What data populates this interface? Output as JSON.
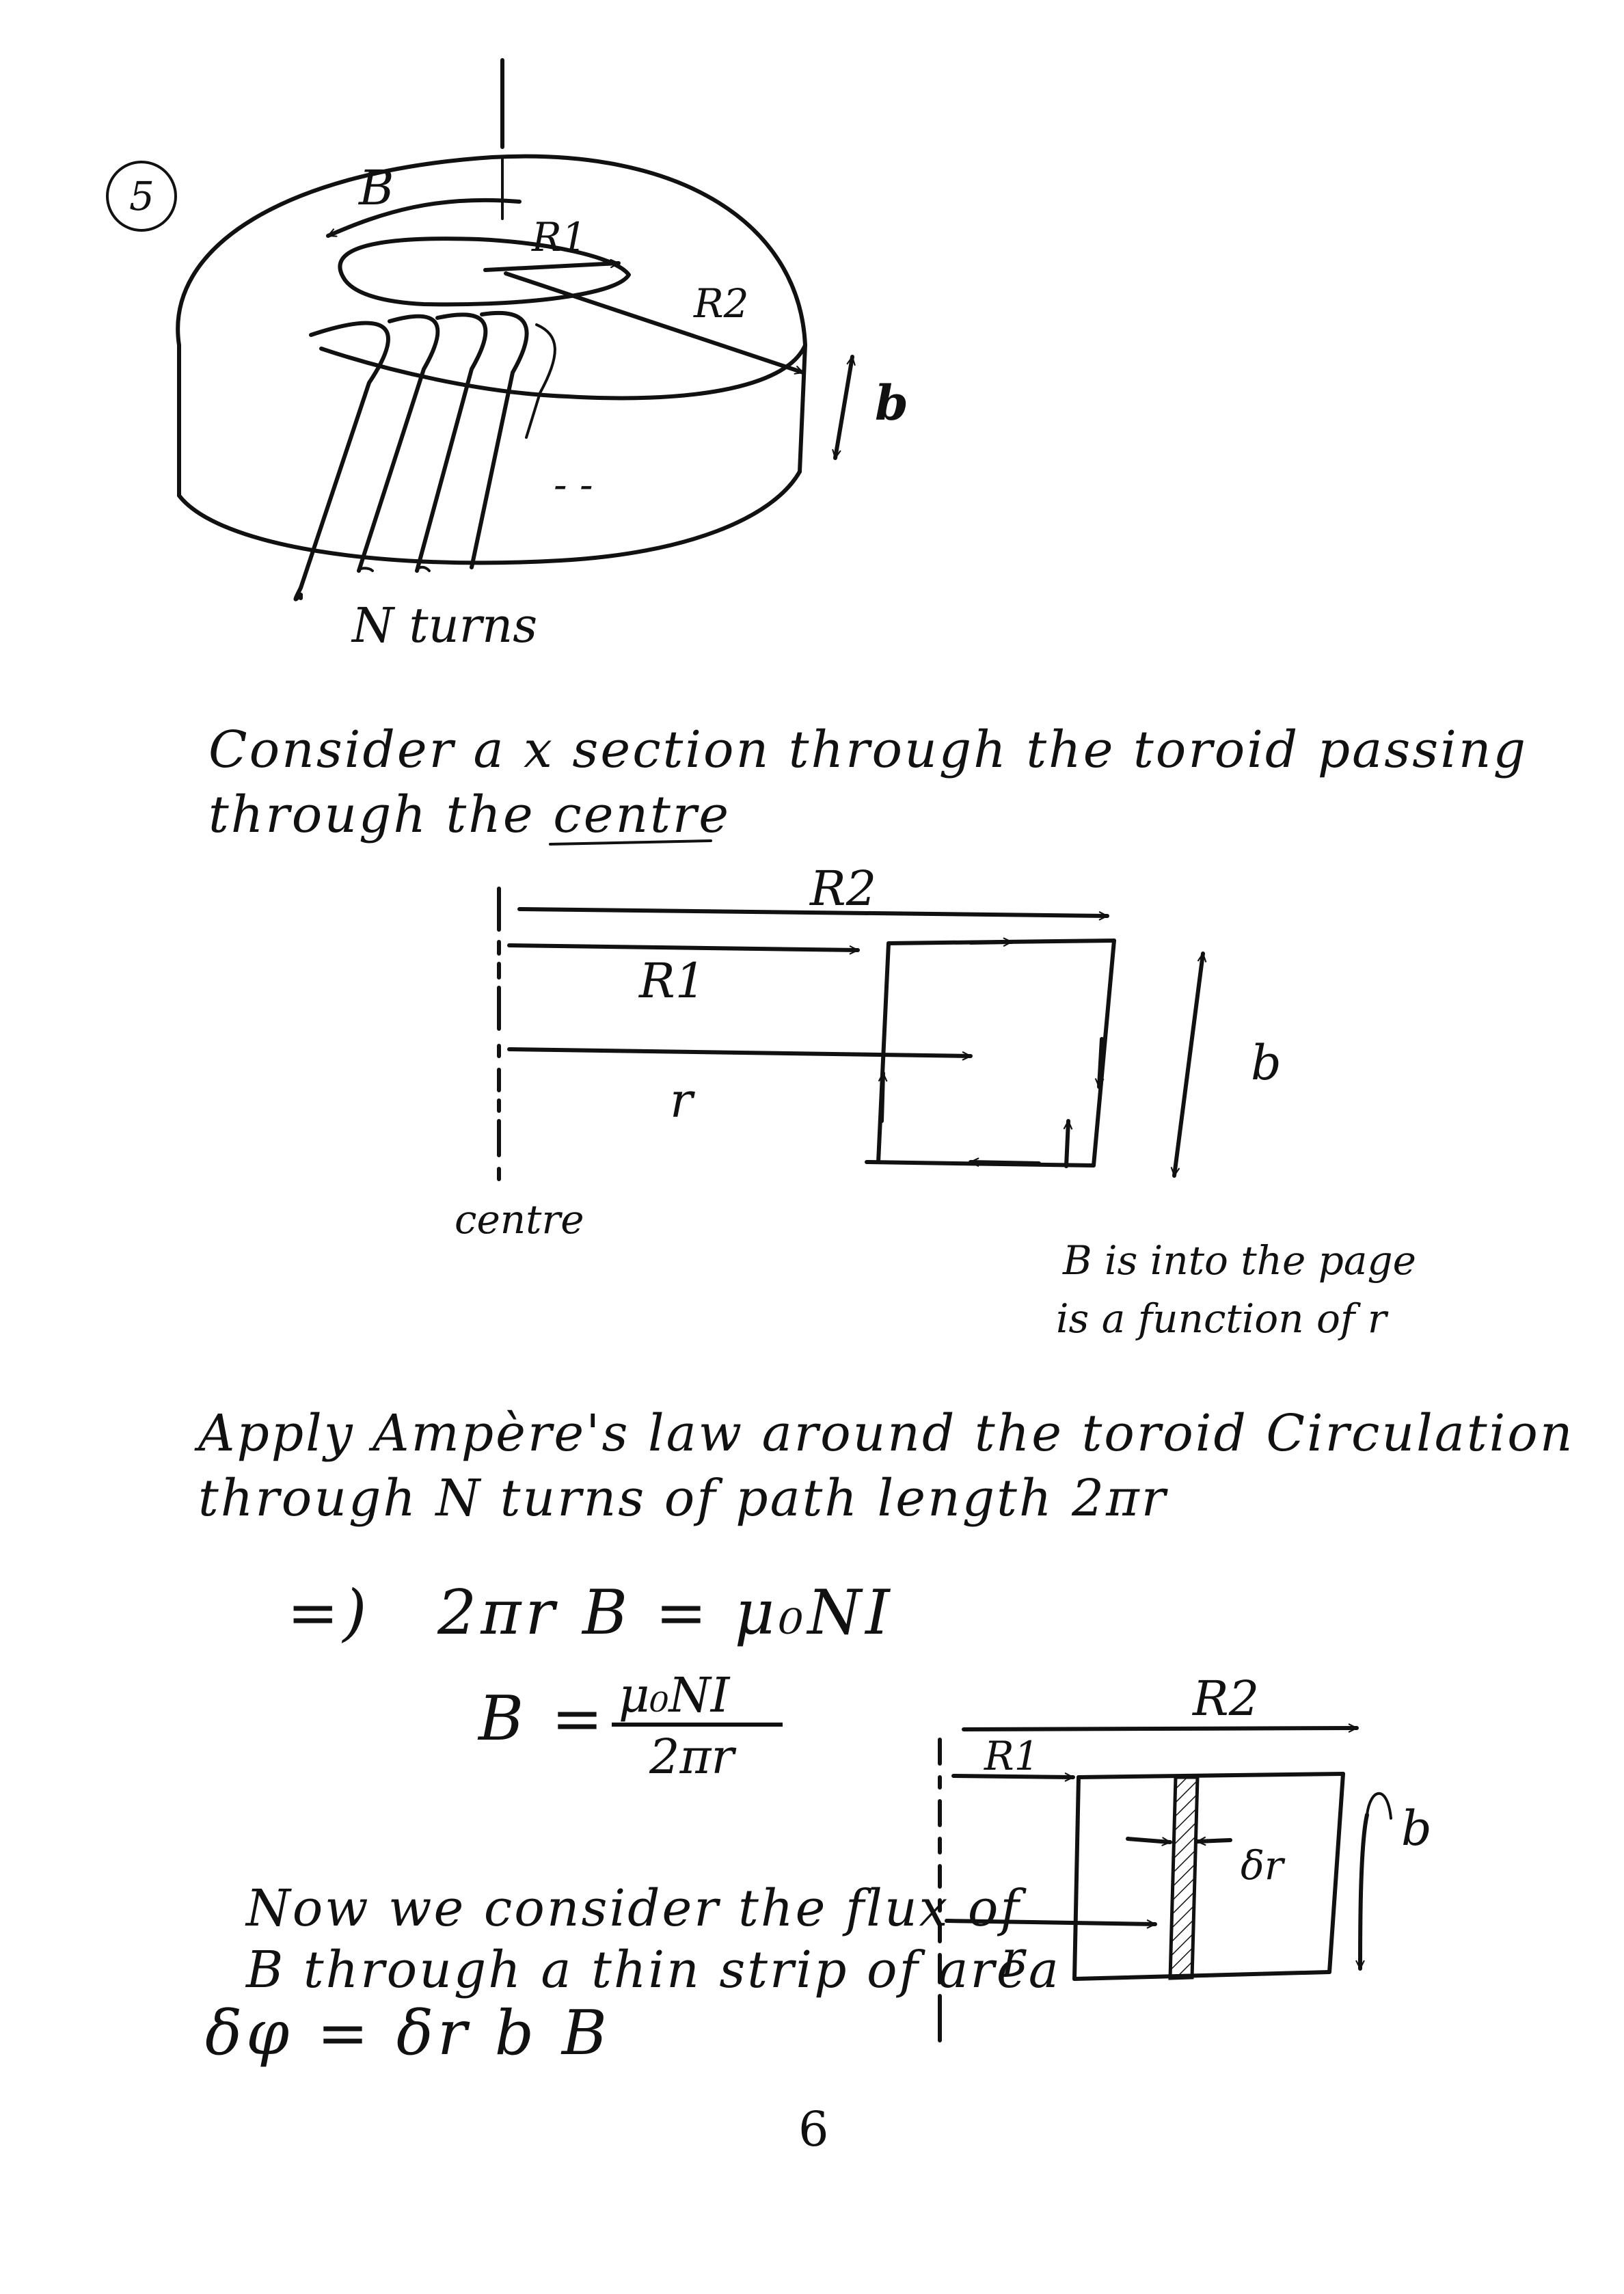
{
  "page_number": "6",
  "question_marker": "5",
  "torus_figure": {
    "field_label": "B",
    "inner_radius_label": "R1",
    "outer_radius_label": "R2",
    "height_label": "b",
    "ellipsis": "- -",
    "turns_label": "N turns"
  },
  "intro_text": {
    "line1": "Consider a x section through the toroid passing",
    "line2": "through the centre"
  },
  "cross_section_figure": {
    "outer_radius_label": "R2",
    "inner_radius_label": "R1",
    "radius_label": "r",
    "height_label": "b",
    "axis_label": "centre",
    "note_line1": "B is into the page",
    "note_line2": "is a function of r"
  },
  "ampere_text": {
    "line1": "Apply Ampère's law around the toroid Circulation",
    "line2": "through N turns of path length 2πr"
  },
  "equations": {
    "implies": "=)",
    "eq1": "2πr B = μ₀NI",
    "eq2_lhs": "B =",
    "eq2_num": "μ₀NI",
    "eq2_den": "2πr"
  },
  "flux_text": {
    "line1": "Now we consider the flux of",
    "line2": "B through a thin strip of area",
    "line3": "δφ = δr b B"
  },
  "strip_figure": {
    "outer_radius_label": "R2",
    "inner_radius_label": "R1",
    "radius_label": "r",
    "strip_width_label": "δr",
    "height_label": "b"
  }
}
